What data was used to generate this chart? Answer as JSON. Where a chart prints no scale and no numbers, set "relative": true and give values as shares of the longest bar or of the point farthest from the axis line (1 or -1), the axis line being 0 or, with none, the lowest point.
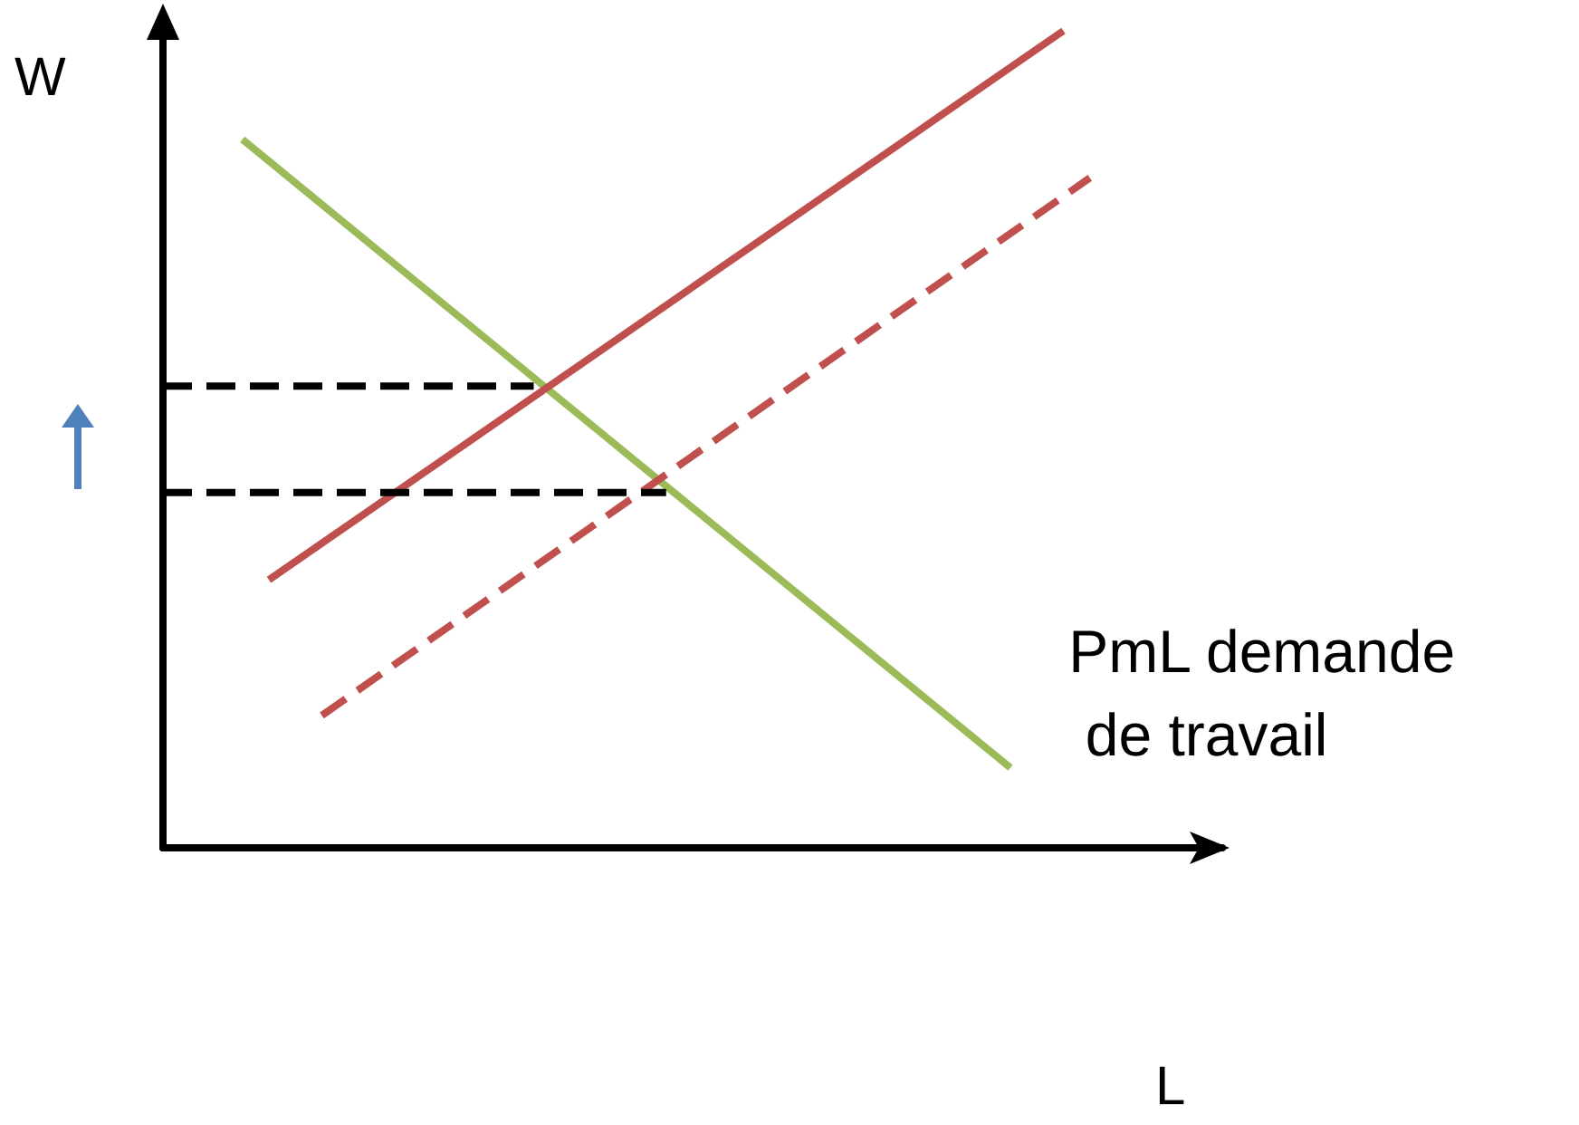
{
  "chart_data": {
    "type": "line",
    "relative": true,
    "xlabel": "L",
    "ylabel": "W",
    "grid": false,
    "marker": "none",
    "annotations": [
      "PmL demande\n de travail"
    ],
    "categories": [
      null,
      null,
      null,
      null,
      null,
      null,
      null,
      null,
      null,
      null,
      null,
      null,
      null,
      null,
      null,
      null,
      null,
      null,
      null,
      null,
      null,
      null,
      null,
      null,
      null,
      null,
      null,
      null,
      null,
      null,
      null,
      null,
      null,
      null,
      null,
      null,
      null,
      null,
      null,
      null,
      null
    ],
    "series": [
      {
        "color": "#9bbb59",
        "line_style": "solid",
        "values": [
          null,
          null,
          null,
          0.867,
          null,
          null,
          null,
          null,
          null,
          null,
          null,
          null,
          null,
          null,
          null,
          null,
          null,
          null,
          null,
          null,
          null,
          null,
          null,
          null,
          null,
          null,
          null,
          null,
          null,
          null,
          null,
          null,
          0.098,
          null,
          null,
          null,
          null,
          null,
          null,
          null,
          null
        ]
      },
      {
        "color": "#c0504d",
        "line_style": "solid",
        "values": [
          null,
          null,
          null,
          null,
          0.328,
          null,
          null,
          null,
          null,
          null,
          null,
          null,
          null,
          null,
          null,
          null,
          null,
          null,
          null,
          null,
          null,
          null,
          null,
          null,
          null,
          null,
          null,
          null,
          null,
          null,
          null,
          null,
          null,
          null,
          1,
          null,
          null,
          null,
          null,
          null,
          null
        ]
      },
      {
        "color": "#c0504d",
        "line_style": "dashed",
        "values": [
          null,
          null,
          null,
          null,
          null,
          null,
          0.162,
          null,
          null,
          null,
          null,
          null,
          null,
          null,
          null,
          null,
          null,
          null,
          null,
          null,
          null,
          null,
          null,
          null,
          null,
          null,
          null,
          null,
          null,
          null,
          null,
          null,
          null,
          null,
          null,
          0.82,
          null,
          null,
          null,
          null,
          null
        ]
      },
      {
        "color": "#000000",
        "line_style": "dashed",
        "values": [
          0.565,
          null,
          null,
          null,
          null,
          null,
          null,
          null,
          null,
          null,
          null,
          null,
          null,
          null,
          0.565,
          null,
          null,
          null,
          null,
          null,
          null,
          null,
          null,
          null,
          null,
          null,
          null,
          null,
          null,
          null,
          null,
          null,
          null,
          null,
          null,
          null,
          null,
          null,
          null,
          null,
          null
        ]
      },
      {
        "color": "#000000",
        "line_style": "dashed",
        "values": [
          0.435,
          null,
          null,
          null,
          null,
          null,
          null,
          null,
          null,
          null,
          null,
          null,
          null,
          null,
          null,
          null,
          null,
          null,
          null,
          0.435,
          null,
          null,
          null,
          null,
          null,
          null,
          null,
          null,
          null,
          null,
          null,
          null,
          null,
          null,
          null,
          null,
          null,
          null,
          null,
          null,
          null
        ]
      }
    ]
  }
}
